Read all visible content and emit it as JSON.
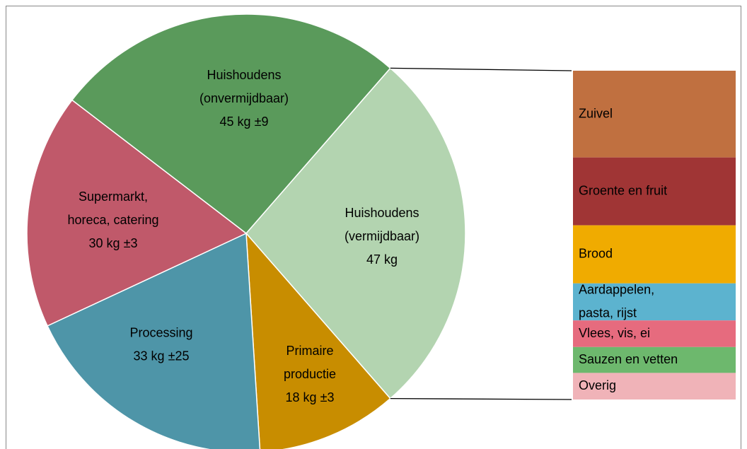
{
  "chart_data": {
    "type": "pie",
    "categories": [
      [
        "Huishoudens",
        "(vermijdbaar)"
      ],
      [
        "Primaire",
        "productie"
      ],
      [
        "Processing"
      ],
      [
        "Supermarkt,",
        "horeca, catering"
      ],
      [
        "Huishoudens",
        "(onvermijdbaar)"
      ]
    ],
    "values": [
      47,
      18,
      33,
      30,
      45
    ],
    "value_labels": [
      "47 kg",
      "18 kg ±3",
      "33 kg ±25",
      "30 kg ±3",
      "45 kg ±9"
    ],
    "colors": [
      "#b3d4b0",
      "#c88d00",
      "#4e95a8",
      "#c0596a",
      "#5a9a5b"
    ],
    "breakdown": {
      "type": "stacked-bar",
      "categories": [
        [
          "Zuivel"
        ],
        [
          "Groente en fruit"
        ],
        [
          "Brood"
        ],
        [
          "Aardappelen,",
          "pasta, rijst"
        ],
        [
          "Vlees, vis, ei"
        ],
        [
          "Sauzen en vetten"
        ],
        [
          "Overig"
        ]
      ],
      "values": [
        12.4,
        9.7,
        8.3,
        5.3,
        3.8,
        3.7,
        3.8
      ],
      "colors": [
        "#c07040",
        "#a03535",
        "#f0ab00",
        "#5cb3cf",
        "#e66b7e",
        "#6db86d",
        "#f0b3b8"
      ]
    }
  }
}
